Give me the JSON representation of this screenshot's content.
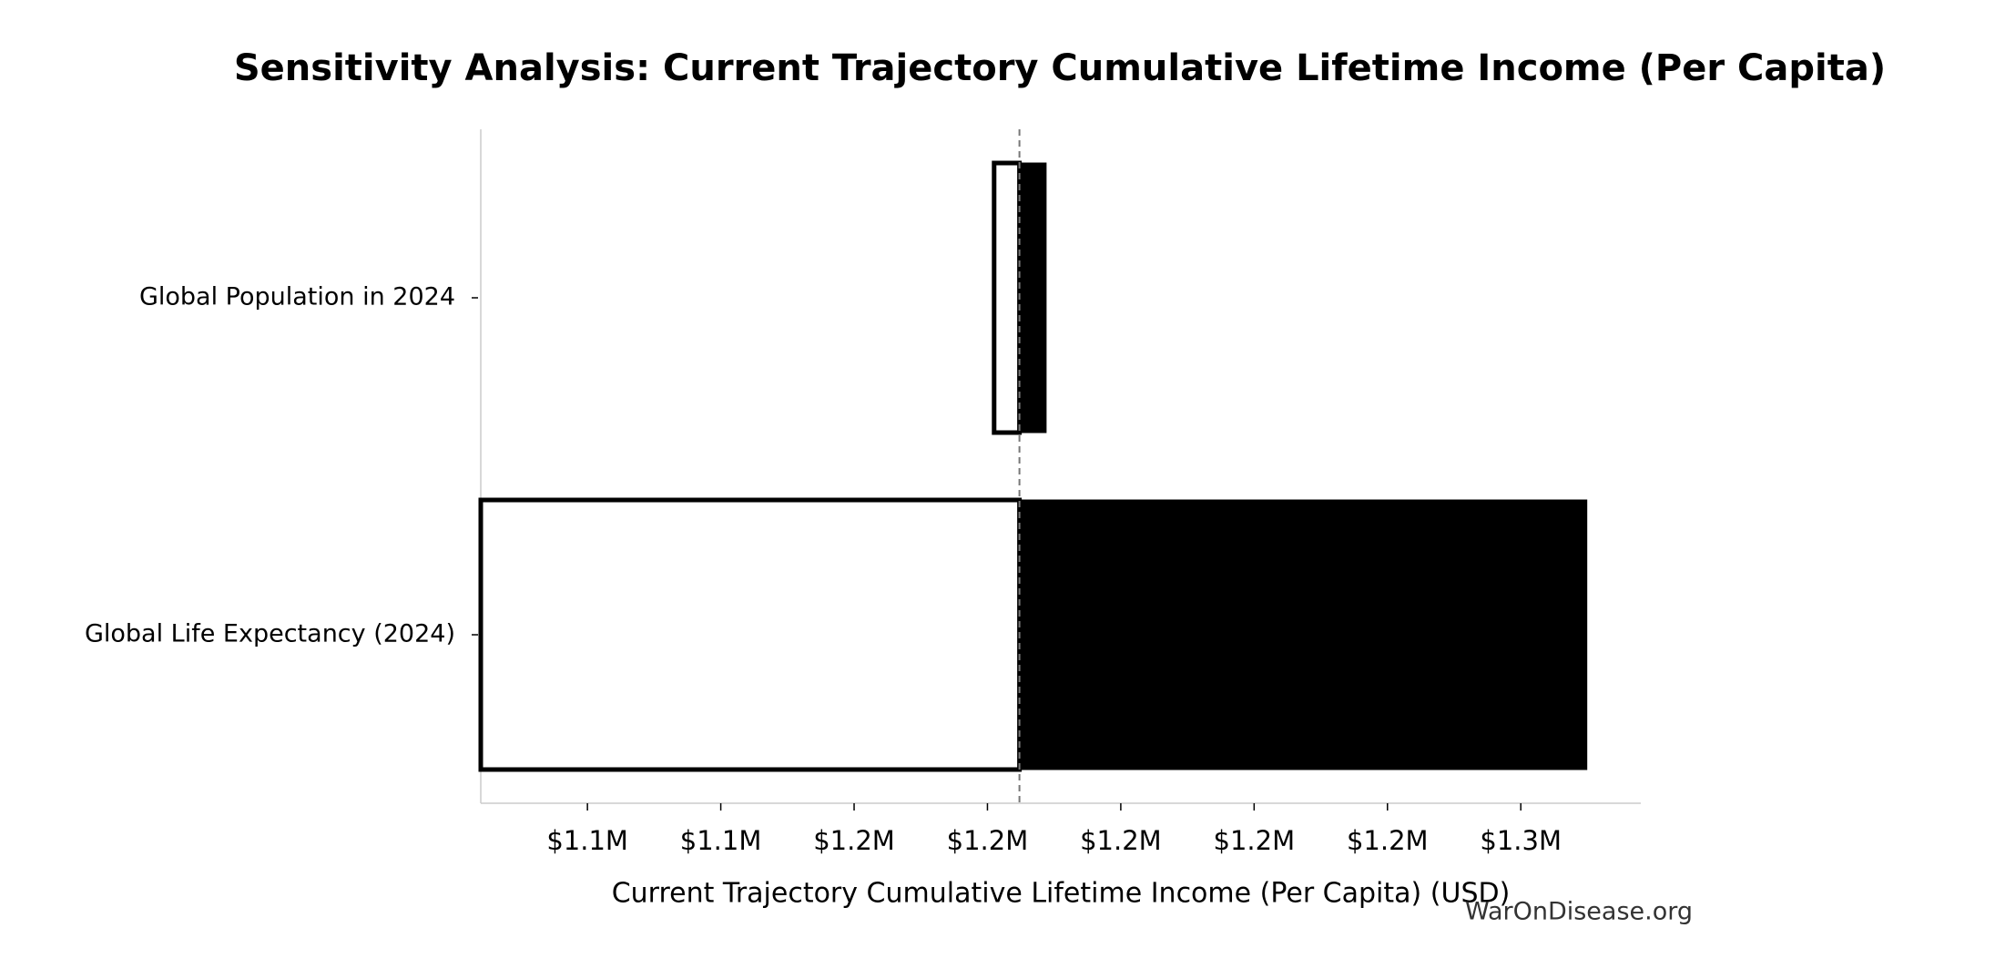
{
  "chart_data": {
    "type": "tornado",
    "title": "Sensitivity Analysis: Current Trajectory Cumulative Lifetime Income (Per Capita)",
    "xlabel": "Current Trajectory Cumulative Lifetime Income (Per Capita) (USD)",
    "watermark": "WarOnDisease.org",
    "categories": [
      "Global Population in 2024",
      "Global Life Expectancy (2024)"
    ],
    "values_low": [
      1181000,
      1104000
    ],
    "values_high": [
      1188800,
      1269900
    ],
    "baseline": 1184800,
    "low_color": "#ffffff",
    "high_color": "#000000",
    "xlim": [
      1104000,
      1278000
    ],
    "xticks": [
      {
        "value": 1120000,
        "label": "$1.1M"
      },
      {
        "value": 1140000,
        "label": "$1.1M"
      },
      {
        "value": 1160000,
        "label": "$1.2M"
      },
      {
        "value": 1180000,
        "label": "$1.2M"
      },
      {
        "value": 1200000,
        "label": "$1.2M"
      },
      {
        "value": 1220000,
        "label": "$1.2M"
      },
      {
        "value": 1240000,
        "label": "$1.2M"
      },
      {
        "value": 1260000,
        "label": "$1.3M"
      }
    ]
  }
}
